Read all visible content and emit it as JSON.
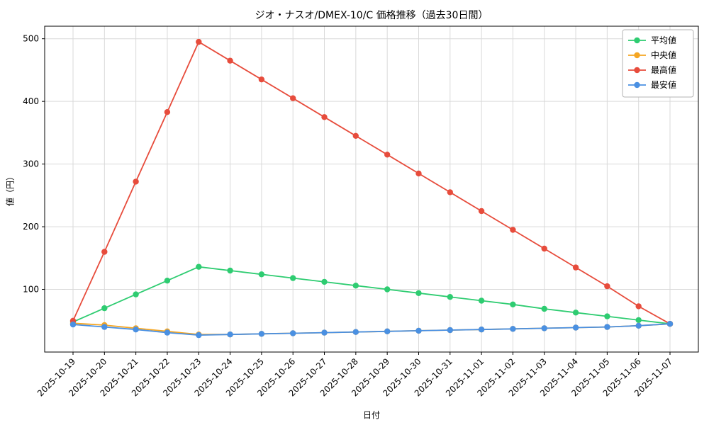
{
  "chart_data": {
    "type": "line",
    "title": "ジオ・ナスオ/DMEX-10/C 価格推移（過去30日間）",
    "xlabel": "日付",
    "ylabel": "値（円）",
    "x": [
      "2025-10-19",
      "2025-10-20",
      "2025-10-21",
      "2025-10-22",
      "2025-10-23",
      "2025-10-24",
      "2025-10-25",
      "2025-10-26",
      "2025-10-27",
      "2025-10-28",
      "2025-10-29",
      "2025-10-30",
      "2025-10-31",
      "2025-11-01",
      "2025-11-02",
      "2025-11-03",
      "2025-11-04",
      "2025-11-05",
      "2025-11-06",
      "2025-11-07"
    ],
    "series": [
      {
        "name": "平均値",
        "key": "average",
        "color": "#2ecc71",
        "values": [
          48,
          70,
          92,
          114,
          136,
          130,
          124,
          118,
          112,
          106,
          100,
          94,
          88,
          82,
          76,
          69,
          63,
          57,
          51,
          45
        ]
      },
      {
        "name": "中央値",
        "key": "median",
        "color": "#f5a623",
        "values": [
          46,
          43,
          38,
          33,
          28,
          28,
          29,
          30,
          31,
          32,
          33,
          34,
          35,
          36,
          37,
          38,
          39,
          40,
          42,
          45
        ]
      },
      {
        "name": "最高値",
        "key": "max",
        "color": "#e74c3c",
        "values": [
          50,
          160,
          272,
          383,
          495,
          465,
          435,
          405,
          375,
          345,
          315,
          285,
          255,
          225,
          195,
          165,
          135,
          105,
          73,
          45
        ]
      },
      {
        "name": "最安値",
        "key": "min",
        "color": "#4a90e2",
        "values": [
          44,
          40,
          36,
          31,
          27,
          28,
          29,
          30,
          31,
          32,
          33,
          34,
          35,
          36,
          37,
          38,
          39,
          40,
          42,
          45
        ]
      }
    ],
    "ylim": [
      0,
      520
    ],
    "yticks": [
      100,
      200,
      300,
      400,
      500
    ],
    "grid": true,
    "legend_position": "upper right"
  }
}
